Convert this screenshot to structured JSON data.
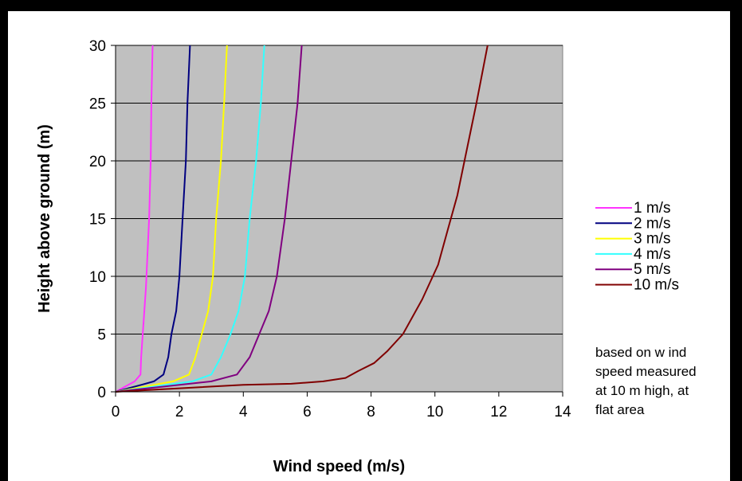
{
  "chart_data": {
    "type": "line",
    "xlabel": "Wind speed (m/s)",
    "ylabel": "Height above ground (m)",
    "xlim": [
      0,
      14
    ],
    "ylim": [
      0,
      30
    ],
    "x_ticks": [
      "0",
      "2",
      "4",
      "6",
      "8",
      "10",
      "12",
      "14"
    ],
    "y_ticks": [
      "0",
      "5",
      "10",
      "15",
      "20",
      "25",
      "30"
    ],
    "grid": "horizontal",
    "legend_position": "right",
    "plot_background": "#c0c0c0",
    "series": [
      {
        "name": "1 m/s",
        "color": "#ff33ff",
        "points": [
          [
            0,
            0
          ],
          [
            0.2,
            0.3
          ],
          [
            0.4,
            0.6
          ],
          [
            0.6,
            0.9
          ],
          [
            0.78,
            1.5
          ],
          [
            0.8,
            3
          ],
          [
            0.85,
            5
          ],
          [
            0.9,
            7
          ],
          [
            0.95,
            9
          ],
          [
            1.0,
            12
          ],
          [
            1.05,
            15
          ],
          [
            1.1,
            20
          ],
          [
            1.12,
            25
          ],
          [
            1.16,
            30
          ]
        ]
      },
      {
        "name": "2 m/s",
        "color": "#000080",
        "points": [
          [
            0,
            0
          ],
          [
            0.4,
            0.3
          ],
          [
            0.8,
            0.6
          ],
          [
            1.2,
            0.9
          ],
          [
            1.5,
            1.5
          ],
          [
            1.65,
            3
          ],
          [
            1.75,
            5
          ],
          [
            1.9,
            7
          ],
          [
            2.0,
            10
          ],
          [
            2.1,
            15
          ],
          [
            2.2,
            20
          ],
          [
            2.25,
            25
          ],
          [
            2.33,
            30
          ]
        ]
      },
      {
        "name": "3 m/s",
        "color": "#ffff00",
        "points": [
          [
            0,
            0
          ],
          [
            0.6,
            0.3
          ],
          [
            1.2,
            0.6
          ],
          [
            1.8,
            0.9
          ],
          [
            2.3,
            1.5
          ],
          [
            2.5,
            3
          ],
          [
            2.7,
            5
          ],
          [
            2.9,
            7
          ],
          [
            3.05,
            10
          ],
          [
            3.15,
            15
          ],
          [
            3.3,
            20
          ],
          [
            3.4,
            25
          ],
          [
            3.49,
            30
          ]
        ]
      },
      {
        "name": "4 m/s",
        "color": "#33ffff",
        "points": [
          [
            0,
            0
          ],
          [
            0.8,
            0.3
          ],
          [
            1.6,
            0.6
          ],
          [
            2.4,
            0.9
          ],
          [
            3.0,
            1.5
          ],
          [
            3.3,
            3
          ],
          [
            3.6,
            5
          ],
          [
            3.85,
            7
          ],
          [
            4.05,
            10
          ],
          [
            4.2,
            15
          ],
          [
            4.4,
            20
          ],
          [
            4.55,
            25
          ],
          [
            4.66,
            30
          ]
        ]
      },
      {
        "name": "5 m/s",
        "color": "#800080",
        "points": [
          [
            0,
            0
          ],
          [
            1.0,
            0.3
          ],
          [
            2.0,
            0.6
          ],
          [
            3.0,
            0.9
          ],
          [
            3.8,
            1.5
          ],
          [
            4.2,
            3
          ],
          [
            4.5,
            5
          ],
          [
            4.8,
            7
          ],
          [
            5.05,
            10
          ],
          [
            5.3,
            15
          ],
          [
            5.5,
            20
          ],
          [
            5.7,
            25
          ],
          [
            5.83,
            30
          ]
        ]
      },
      {
        "name": "10 m/s",
        "color": "#800000",
        "points": [
          [
            0,
            0
          ],
          [
            2.0,
            0.3
          ],
          [
            4.0,
            0.6
          ],
          [
            5.5,
            0.7
          ],
          [
            6.5,
            0.9
          ],
          [
            7.2,
            1.2
          ],
          [
            7.6,
            1.8
          ],
          [
            8.1,
            2.5
          ],
          [
            8.5,
            3.5
          ],
          [
            9.0,
            5
          ],
          [
            9.6,
            8
          ],
          [
            10.1,
            11
          ],
          [
            10.4,
            14
          ],
          [
            10.7,
            17
          ],
          [
            11.0,
            21
          ],
          [
            11.3,
            25
          ],
          [
            11.65,
            30
          ]
        ]
      }
    ],
    "annotation": [
      "based on w ind",
      "speed measured",
      "at 10 m high, at",
      "flat area"
    ]
  }
}
